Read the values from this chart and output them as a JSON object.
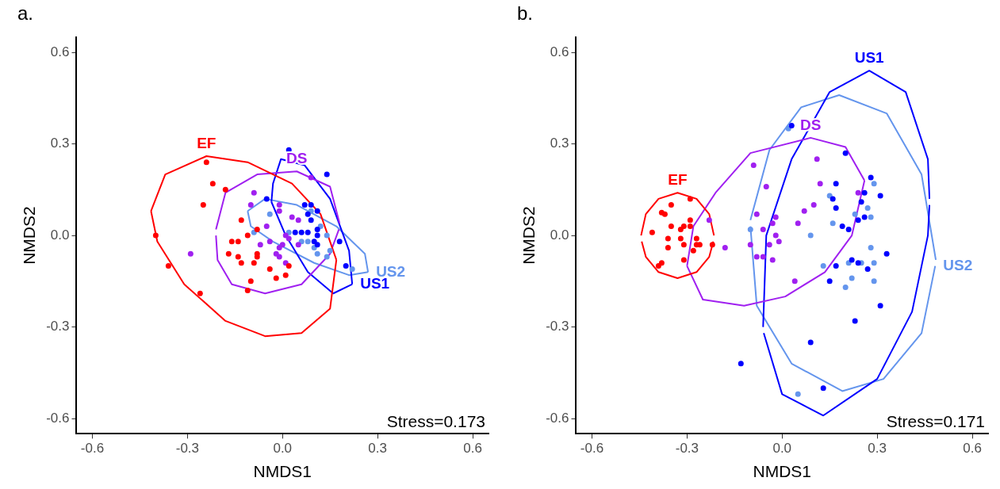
{
  "chart_data": [
    {
      "type": "scatter",
      "title": "a.",
      "xlabel": "NMDS1",
      "ylabel": "NMDS2",
      "xlim": [
        -0.65,
        0.65
      ],
      "ylim": [
        -0.65,
        0.65
      ],
      "xticks": [
        -0.6,
        -0.3,
        {
          "value": 0,
          "label": "0.0"
        },
        0.3,
        0.6
      ],
      "yticks": [
        -0.6,
        -0.3,
        {
          "value": 0,
          "label": "0.0"
        },
        0.3,
        0.6
      ],
      "grid": false,
      "legend": false,
      "marker": "circle",
      "annotations": [
        "Stress=0.173"
      ],
      "series": [
        {
          "color": "#ff0000",
          "x": [
            -0.24,
            -0.22,
            -0.18,
            -0.25,
            -0.4,
            -0.36,
            -0.26,
            -0.13,
            -0.08,
            -0.11,
            -0.16,
            -0.14,
            -0.17,
            -0.14,
            -0.08,
            -0.08,
            -0.09,
            -0.13,
            -0.04,
            0.02,
            0.01,
            -0.02,
            -0.1,
            -0.11
          ],
          "values": [
            0.24,
            0.17,
            0.15,
            0.1,
            0,
            -0.1,
            -0.19,
            0.05,
            0.02,
            0,
            -0.02,
            -0.02,
            -0.06,
            -0.07,
            -0.06,
            -0.07,
            -0.09,
            -0.09,
            -0.11,
            -0.1,
            -0.13,
            -0.14,
            -0.15,
            -0.18
          ]
        },
        {
          "color": "#a020f0",
          "x": [
            0.09,
            -0.09,
            -0.1,
            -0.01,
            -0.01,
            0.03,
            0.05,
            -0.05,
            0.01,
            0.02,
            -0.04,
            -0.07,
            -0.01,
            0,
            0.05,
            -0.02,
            -0.01,
            0.01,
            -0.29
          ],
          "values": [
            0.19,
            0.14,
            0.1,
            0.1,
            0.08,
            0.06,
            0.05,
            0.03,
            0,
            -0.01,
            -0.02,
            -0.03,
            -0.04,
            -0.03,
            -0.03,
            -0.06,
            -0.07,
            -0.09,
            -0.06
          ]
        },
        {
          "color": "#0000ff",
          "x": [
            0.02,
            0.14,
            -0.05,
            0.07,
            0.09,
            0.11,
            0.08,
            0.09,
            0.04,
            0.06,
            0.08,
            0.11,
            0.11,
            0.1,
            0.18,
            0.11,
            0.2
          ],
          "values": [
            0.28,
            0.2,
            0.12,
            0.1,
            0.1,
            0.08,
            0.07,
            0.05,
            0.01,
            0.01,
            0.01,
            0.02,
            0,
            -0.02,
            -0.02,
            -0.03,
            -0.1
          ]
        },
        {
          "color": "#6495ed",
          "x": [
            -0.04,
            -0.09,
            0.02,
            0.06,
            0.09,
            0.12,
            0.08,
            0.14,
            0.1,
            0.11,
            0.14,
            0.15,
            0.22
          ],
          "values": [
            0.07,
            0.01,
            0.01,
            -0.02,
            0.08,
            0.03,
            -0.02,
            0,
            -0.04,
            -0.06,
            -0.07,
            -0.05,
            -0.11
          ]
        },
        {
          "type": "line",
          "name": "EF",
          "marker": "none",
          "color": "#ff0000",
          "x": [
            -0.415,
            -0.37,
            -0.24,
            -0.11,
            0.03,
            0.12,
            0.17
          ],
          "values": [
            0.08,
            0.2,
            0.26,
            0.24,
            0.17,
            0.07,
            -0.08
          ]
        },
        {
          "type": "line",
          "marker": "none",
          "color": "#ff0000",
          "x": [
            -0.415,
            -0.395,
            -0.31,
            -0.18,
            -0.055,
            0.06,
            0.15,
            0.17
          ],
          "values": [
            0.08,
            -0.02,
            -0.16,
            -0.28,
            -0.33,
            -0.32,
            -0.24,
            -0.08
          ]
        },
        {
          "type": "line",
          "name": "DS",
          "marker": "none",
          "color": "#a020f0",
          "x": [
            -0.21,
            -0.18,
            -0.08,
            0.045,
            0.15,
            0.18
          ],
          "values": [
            0.02,
            0.14,
            0.2,
            0.21,
            0.16,
            0.04
          ]
        },
        {
          "type": "line",
          "marker": "none",
          "color": "#a020f0",
          "x": [
            -0.21,
            -0.205,
            -0.16,
            -0.055,
            0.06,
            0.15,
            0.178
          ],
          "values": [
            0.0,
            -0.08,
            -0.16,
            -0.19,
            -0.16,
            -0.06,
            0.02
          ]
        },
        {
          "type": "line",
          "marker": "none",
          "color": "#0000ff",
          "x": [
            -0.035,
            -0.03,
            -0.005,
            0.07,
            0.15,
            0.21,
            0.22
          ],
          "values": [
            0.11,
            0.17,
            0.25,
            0.23,
            0.12,
            -0.05,
            -0.16
          ]
        },
        {
          "type": "line",
          "name": "US1",
          "marker": "none",
          "color": "#0000ff",
          "x": [
            -0.035,
            0.01,
            0.08,
            0.16,
            0.22
          ],
          "values": [
            0.11,
            0,
            -0.12,
            -0.19,
            -0.16
          ]
        },
        {
          "type": "line",
          "marker": "none",
          "color": "#6495ed",
          "x": [
            -0.11,
            -0.055,
            0.045,
            0.17,
            0.26,
            0.27
          ],
          "values": [
            0.08,
            0.12,
            0.1,
            0.03,
            -0.06,
            -0.12
          ]
        },
        {
          "type": "line",
          "name": "US2",
          "marker": "none",
          "color": "#6495ed",
          "x": [
            -0.11,
            -0.1,
            -0.03,
            0.1,
            0.21,
            0.27
          ],
          "values": [
            0.08,
            0.03,
            -0.02,
            -0.09,
            -0.13,
            -0.12
          ]
        }
      ]
    },
    {
      "type": "scatter",
      "title": "b.",
      "xlabel": "NMDS1",
      "ylabel": "NMDS2",
      "xlim": [
        -0.65,
        0.65
      ],
      "ylim": [
        -0.65,
        0.65
      ],
      "xticks": [
        -0.6,
        -0.3,
        {
          "value": 0,
          "label": "0.0"
        },
        0.3,
        0.6
      ],
      "yticks": [
        -0.6,
        -0.3,
        {
          "value": 0,
          "label": "0.0"
        },
        0.3,
        0.6
      ],
      "grid": false,
      "legend": false,
      "marker": "circle",
      "annotations": [
        "Stress=0.171"
      ],
      "series": [
        {
          "color": "#ff0000",
          "x": [
            -0.29,
            -0.35,
            -0.37,
            -0.38,
            -0.29,
            -0.35,
            -0.31,
            -0.32,
            -0.29,
            -0.41,
            -0.36,
            -0.32,
            -0.27,
            -0.26,
            -0.27,
            -0.31,
            -0.36,
            -0.22,
            -0.28,
            -0.31,
            -0.38,
            -0.39
          ],
          "values": [
            0.12,
            0.1,
            0.07,
            0.075,
            0.05,
            0.03,
            0.03,
            0.02,
            0.03,
            0.01,
            -0.01,
            -0.01,
            -0.01,
            -0.03,
            -0.03,
            -0.03,
            -0.04,
            -0.03,
            -0.05,
            -0.08,
            -0.09,
            -0.1
          ]
        },
        {
          "color": "#a020f0",
          "x": [
            -0.23,
            -0.18,
            -0.09,
            0.11,
            -0.05,
            0.12,
            0.1,
            0.07,
            0.05,
            0.24,
            -0.08,
            -0.02,
            -0.06,
            -0.03,
            -0.02,
            -0.01,
            -0.1,
            -0.04,
            -0.08,
            -0.06,
            -0.03,
            0.04
          ],
          "values": [
            0.05,
            -0.04,
            0.23,
            0.25,
            0.16,
            0.17,
            0.1,
            0.08,
            0.04,
            0.14,
            0.07,
            0.06,
            0.02,
            0.04,
            0,
            -0.02,
            -0.03,
            -0.03,
            -0.07,
            -0.07,
            -0.08,
            -0.15
          ]
        },
        {
          "color": "#0000ff",
          "x": [
            0.03,
            0.2,
            0.17,
            0.28,
            0.16,
            0.17,
            0.26,
            0.31,
            0.25,
            0.26,
            0.24,
            0.19,
            0.21,
            0.22,
            0.24,
            0.27,
            0.33,
            0.17,
            0.15,
            0.31,
            0.23,
            0.09,
            -0.13,
            0.13
          ],
          "values": [
            0.36,
            0.27,
            0.17,
            0.19,
            0.12,
            0.09,
            0.14,
            0.13,
            0.11,
            0.06,
            0.05,
            0.03,
            0.02,
            -0.08,
            -0.09,
            -0.11,
            -0.06,
            -0.1,
            -0.15,
            -0.23,
            -0.28,
            -0.35,
            -0.42,
            -0.5
          ]
        },
        {
          "color": "#6495ed",
          "x": [
            0.02,
            0.29,
            0.15,
            0.27,
            0.23,
            0.28,
            0.16,
            0.09,
            -0.1,
            0.28,
            0.13,
            0.21,
            0.25,
            0.29,
            0.22,
            0.2,
            0.29,
            0.05
          ],
          "values": [
            0.35,
            0.17,
            0.13,
            0.09,
            0.07,
            0.06,
            0.04,
            0,
            0.02,
            -0.04,
            -0.1,
            -0.09,
            -0.09,
            -0.09,
            -0.14,
            -0.17,
            -0.15,
            -0.52
          ]
        },
        {
          "type": "line",
          "name": "EF",
          "marker": "none",
          "color": "#ff0000",
          "x": [
            -0.445,
            -0.43,
            -0.39,
            -0.33,
            -0.27,
            -0.23,
            -0.215
          ],
          "values": [
            0,
            0.07,
            0.12,
            0.14,
            0.12,
            0.07,
            0
          ]
        },
        {
          "type": "line",
          "marker": "none",
          "color": "#ff0000",
          "x": [
            -0.443,
            -0.43,
            -0.39,
            -0.33,
            -0.27,
            -0.23,
            -0.217
          ],
          "values": [
            -0.02,
            -0.07,
            -0.12,
            -0.14,
            -0.12,
            -0.07,
            -0.02
          ]
        },
        {
          "type": "line",
          "name": "DS",
          "marker": "none",
          "color": "#a020f0",
          "x": [
            -0.3,
            -0.28,
            -0.21,
            -0.1,
            0.09,
            0.2,
            0.26
          ],
          "values": [
            -0.1,
            0.03,
            0.14,
            0.27,
            0.32,
            0.29,
            0.18
          ]
        },
        {
          "type": "line",
          "marker": "none",
          "color": "#a020f0",
          "x": [
            -0.3,
            -0.25,
            -0.12,
            0.01,
            0.135,
            0.22,
            0.26
          ],
          "values": [
            -0.1,
            -0.21,
            -0.23,
            -0.2,
            -0.12,
            0,
            0.18
          ]
        },
        {
          "type": "line",
          "name": "US1",
          "marker": "none",
          "color": "#0000ff",
          "x": [
            -0.06,
            -0.05,
            0.03,
            0.15,
            0.275,
            0.39,
            0.46,
            0.465
          ],
          "values": [
            -0.3,
            0,
            0.25,
            0.47,
            0.54,
            0.47,
            0.25,
            0.12
          ]
        },
        {
          "type": "line",
          "marker": "none",
          "color": "#0000ff",
          "x": [
            -0.058,
            0,
            0.13,
            0.3,
            0.41,
            0.46,
            0.465
          ],
          "values": [
            -0.32,
            -0.52,
            -0.59,
            -0.47,
            -0.25,
            0,
            0.1
          ]
        },
        {
          "type": "line",
          "marker": "none",
          "color": "#6495ed",
          "x": [
            -0.1,
            -0.04,
            0.06,
            0.18,
            0.33,
            0.44,
            0.485
          ],
          "values": [
            0.05,
            0.28,
            0.42,
            0.46,
            0.4,
            0.2,
            -0.08
          ]
        },
        {
          "type": "line",
          "name": "US2",
          "marker": "none",
          "color": "#6495ed",
          "x": [
            -0.1,
            -0.08,
            0.03,
            0.19,
            0.32,
            0.44,
            0.483
          ],
          "values": [
            0.03,
            -0.23,
            -0.42,
            -0.51,
            -0.47,
            -0.32,
            -0.1
          ]
        }
      ]
    }
  ]
}
